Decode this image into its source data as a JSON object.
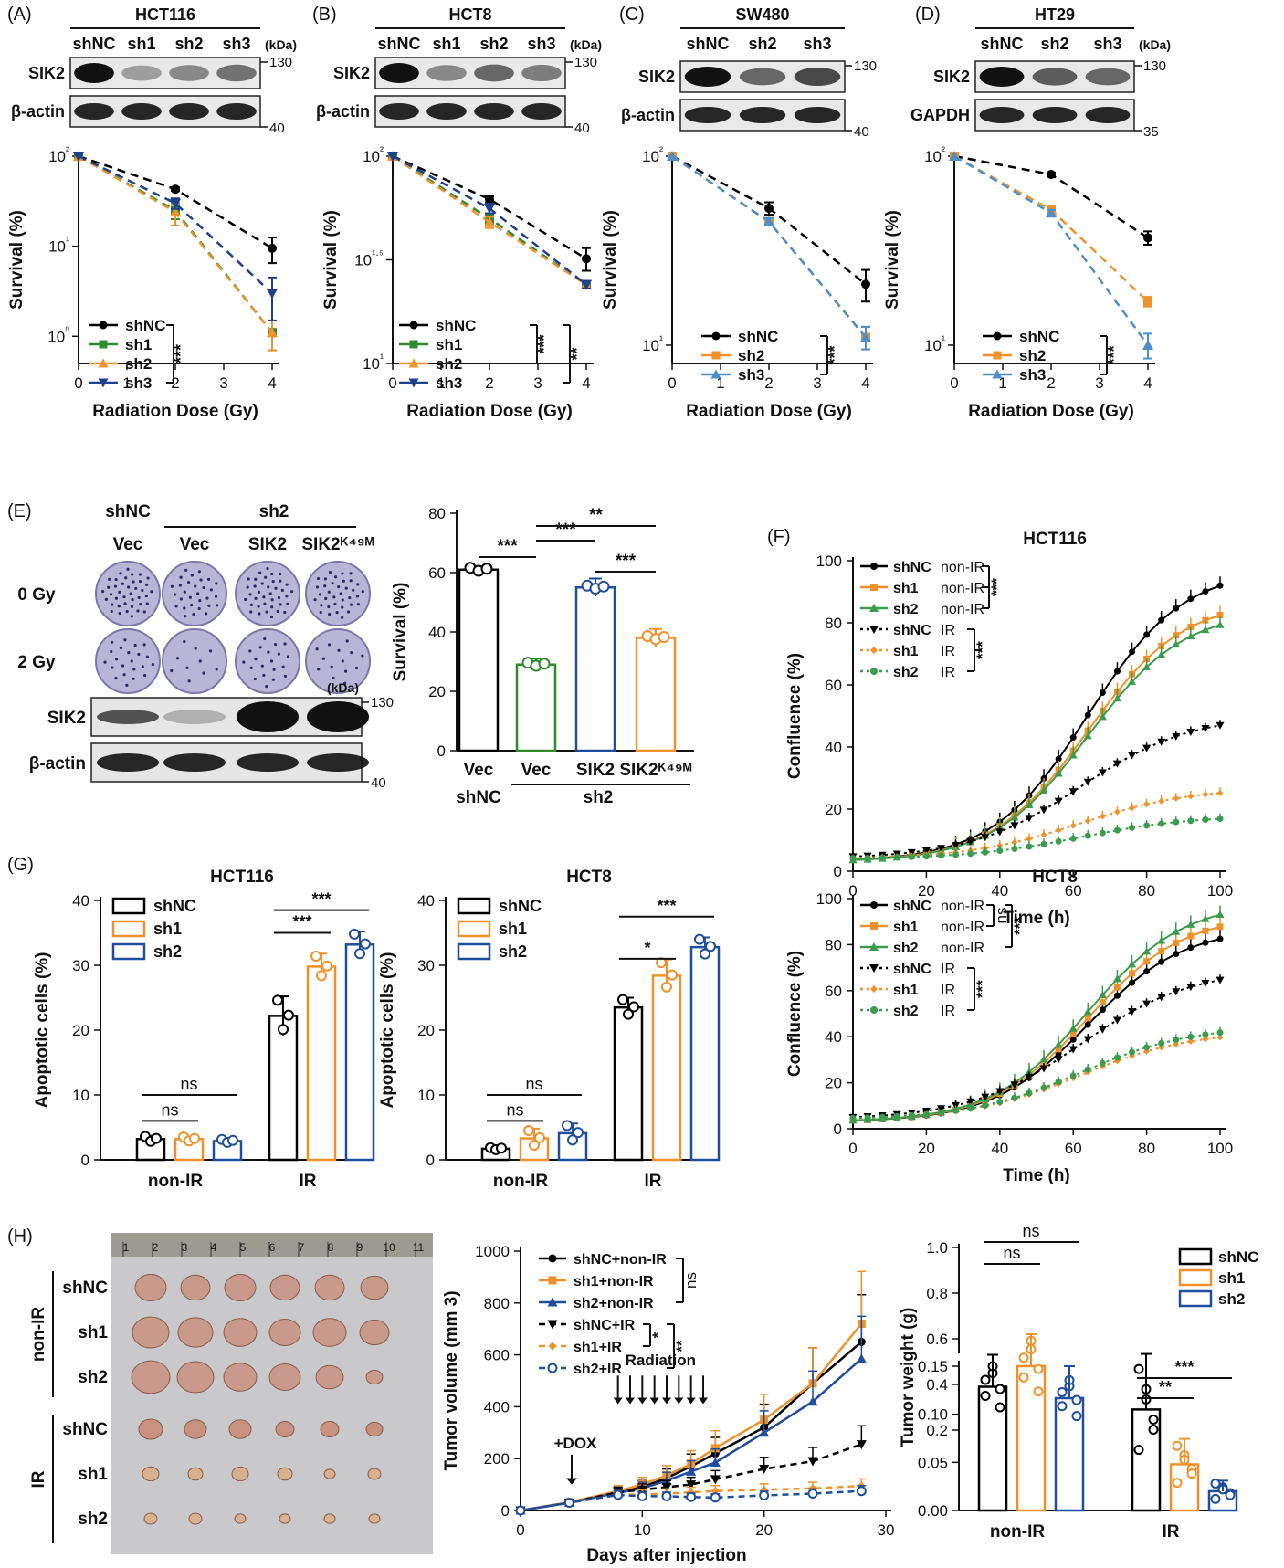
{
  "panels": {
    "A": {
      "label": "(A)",
      "cell": "HCT116",
      "lanes": [
        "shNC",
        "sh1",
        "sh2",
        "sh3"
      ],
      "kda": "(kDa)",
      "blots": [
        "SIK2",
        "β-actin"
      ],
      "markers": [
        "130",
        "40"
      ]
    },
    "B": {
      "label": "(B)",
      "cell": "HCT8",
      "lanes": [
        "shNC",
        "sh1",
        "sh2",
        "sh3"
      ],
      "kda": "(kDa)",
      "blots": [
        "SIK2",
        "β-actin"
      ],
      "markers": [
        "130",
        "40"
      ]
    },
    "C": {
      "label": "(C)",
      "cell": "SW480",
      "lanes": [
        "shNC",
        "sh2",
        "sh3"
      ],
      "blots": [
        "SIK2",
        "β-actin"
      ],
      "markers": [
        "130",
        "40"
      ]
    },
    "D": {
      "label": "(D)",
      "cell": "HT29",
      "lanes": [
        "shNC",
        "sh2",
        "sh3"
      ],
      "kda": "(kDa)",
      "blots": [
        "SIK2",
        "GAPDH"
      ],
      "markers": [
        "130",
        "35"
      ]
    },
    "E": {
      "label": "(E)",
      "groups": [
        "shNC",
        "sh2"
      ],
      "lanes": [
        "Vec",
        "Vec",
        "SIK2",
        "SIK2ᴷ⁴⁹ᴹ"
      ],
      "doses": [
        "0 Gy",
        "2 Gy"
      ],
      "kda": "(kDa)",
      "blots": [
        "SIK2",
        "β-actin"
      ],
      "markers": [
        "130",
        "40"
      ]
    },
    "F": {
      "label": "(F)"
    },
    "G": {
      "label": "(G)"
    },
    "H": {
      "label": "(H)",
      "rows": [
        "shNC",
        "sh1",
        "sh2",
        "shNC",
        "sh1",
        "sh2"
      ],
      "groups": [
        "non-IR",
        "IR"
      ],
      "ruler": [
        "1",
        "2",
        "3",
        "4",
        "5",
        "6",
        "7",
        "8",
        "9",
        "10",
        "11"
      ]
    }
  },
  "chart_data": [
    {
      "id": "A",
      "type": "line",
      "title": "",
      "xlabel": "Radiation Dose (Gy)",
      "ylabel": "Survival (%)",
      "yscale": "log",
      "ylim": [
        0.5,
        100
      ],
      "xlim": [
        0,
        4
      ],
      "yticks": [
        "10²",
        "10¹",
        "10⁰"
      ],
      "xticks": [
        "0",
        "1",
        "2",
        "3",
        "4"
      ],
      "legend_position": "bottom-left",
      "sig": [
        "***"
      ],
      "series": [
        {
          "name": "shNC",
          "color": "#000000",
          "marker": "circle",
          "x": [
            0,
            2,
            4
          ],
          "y": [
            100,
            43,
            9.5
          ],
          "err": [
            0,
            2,
            3
          ]
        },
        {
          "name": "sh1",
          "color": "#2e8b2e",
          "marker": "square",
          "x": [
            0,
            2,
            4
          ],
          "y": [
            100,
            25,
            1.1
          ],
          "err": [
            0,
            5,
            0.4
          ]
        },
        {
          "name": "sh2",
          "color": "#f0922b",
          "marker": "triangle",
          "x": [
            0,
            2,
            4
          ],
          "y": [
            100,
            24,
            1.1
          ],
          "err": [
            0,
            7,
            0.4
          ]
        },
        {
          "name": "sh3",
          "color": "#1f3f8f",
          "marker": "triangle-down",
          "x": [
            0,
            2,
            4
          ],
          "y": [
            100,
            30,
            3
          ],
          "err": [
            0,
            4,
            1.5
          ]
        }
      ]
    },
    {
      "id": "B",
      "type": "line",
      "title": "",
      "xlabel": "Radiation Dose (Gy)",
      "ylabel": "Survival (%)",
      "yscale": "log",
      "ylim": [
        10,
        100
      ],
      "xlim": [
        0,
        4
      ],
      "yticks": [
        "10²",
        "10¹·⁵",
        "10¹"
      ],
      "xticks": [
        "0",
        "1",
        "2",
        "3",
        "4"
      ],
      "legend_position": "bottom-left",
      "sig": [
        "***",
        "**"
      ],
      "series": [
        {
          "name": "shNC",
          "color": "#000000",
          "marker": "circle",
          "x": [
            0,
            2,
            4
          ],
          "y": [
            100,
            62,
            32
          ],
          "err": [
            0,
            2,
            4
          ]
        },
        {
          "name": "sh1",
          "color": "#2e8b2e",
          "marker": "square",
          "x": [
            0,
            2,
            4
          ],
          "y": [
            100,
            50,
            24
          ],
          "err": [
            0,
            3,
            1
          ]
        },
        {
          "name": "sh2",
          "color": "#f0922b",
          "marker": "triangle",
          "x": [
            0,
            2,
            4
          ],
          "y": [
            100,
            48,
            24
          ],
          "err": [
            0,
            3,
            1
          ]
        },
        {
          "name": "sh3",
          "color": "#1f3f8f",
          "marker": "triangle-down",
          "x": [
            0,
            2,
            4
          ],
          "y": [
            100,
            56,
            24
          ],
          "err": [
            0,
            3,
            1
          ]
        }
      ]
    },
    {
      "id": "C",
      "type": "line",
      "title": "",
      "xlabel": "Radiation Dose (Gy)",
      "ylabel": "Survival (%)",
      "yscale": "log",
      "ylim": [
        8,
        100
      ],
      "xlim": [
        0,
        4
      ],
      "yticks": [
        "10²",
        "10¹"
      ],
      "xticks": [
        "0",
        "1",
        "2",
        "3",
        "4"
      ],
      "legend_position": "bottom-left",
      "sig": [
        "***"
      ],
      "series": [
        {
          "name": "shNC",
          "color": "#000000",
          "marker": "circle",
          "x": [
            0,
            2,
            4
          ],
          "y": [
            100,
            53,
            21
          ],
          "err": [
            0,
            4,
            4
          ]
        },
        {
          "name": "sh2",
          "color": "#f0922b",
          "marker": "square",
          "x": [
            0,
            2,
            4
          ],
          "y": [
            100,
            45,
            11
          ],
          "err": [
            0,
            2,
            1.5
          ]
        },
        {
          "name": "sh3",
          "color": "#4d8fcc",
          "marker": "triangle",
          "x": [
            0,
            2,
            4
          ],
          "y": [
            100,
            45,
            11
          ],
          "err": [
            0,
            2,
            1.5
          ]
        }
      ]
    },
    {
      "id": "D",
      "type": "line",
      "title": "",
      "xlabel": "Radiation Dose (Gy)",
      "ylabel": "Survival (%)",
      "yscale": "log",
      "ylim": [
        8,
        100
      ],
      "xlim": [
        0,
        4
      ],
      "yticks": [
        "10²",
        "10¹"
      ],
      "xticks": [
        "0",
        "1",
        "2",
        "3",
        "4"
      ],
      "legend_position": "bottom-left",
      "sig": [
        "***"
      ],
      "series": [
        {
          "name": "shNC",
          "color": "#000000",
          "marker": "circle",
          "x": [
            0,
            2,
            4
          ],
          "y": [
            100,
            80,
            37
          ],
          "err": [
            0,
            2,
            3
          ]
        },
        {
          "name": "sh2",
          "color": "#f0922b",
          "marker": "square",
          "x": [
            0,
            2,
            4
          ],
          "y": [
            100,
            52,
            17
          ],
          "err": [
            0,
            2,
            1
          ]
        },
        {
          "name": "sh3",
          "color": "#4d8fcc",
          "marker": "triangle",
          "x": [
            0,
            2,
            4
          ],
          "y": [
            100,
            50,
            10
          ],
          "err": [
            0,
            2,
            1.5
          ]
        }
      ]
    },
    {
      "id": "E",
      "type": "bar",
      "title": "",
      "ylabel": "Survival (%)",
      "ylim": [
        0,
        80
      ],
      "yticks": [
        "0",
        "20",
        "40",
        "60",
        "80"
      ],
      "categories": [
        "Vec",
        "Vec",
        "SIK2",
        "SIK2ᴷ⁴⁹ᴹ"
      ],
      "groups": [
        "shNC",
        "sh2"
      ],
      "values": [
        61,
        29,
        55,
        38
      ],
      "err": [
        1,
        2,
        3,
        3
      ],
      "colors": [
        "#000000",
        "#2e8b2e",
        "#1f4e9c",
        "#f0922b"
      ],
      "sig": [
        "***",
        "***",
        "**",
        "***"
      ]
    },
    {
      "id": "F1",
      "type": "line",
      "title": "HCT116",
      "xlabel": "Time (h)",
      "ylabel": "Confluence (%)",
      "xlim": [
        0,
        100
      ],
      "ylim": [
        0,
        100
      ],
      "xticks": [
        "0",
        "20",
        "40",
        "60",
        "80",
        "100"
      ],
      "yticks": [
        "0",
        "20",
        "40",
        "60",
        "80",
        "100"
      ],
      "legend_position": "top-left",
      "sig": [
        "***",
        "***"
      ],
      "series": [
        {
          "name": "shNC",
          "cond": "non-IR",
          "color": "#000000",
          "marker": "circle",
          "final": 88
        },
        {
          "name": "sh1",
          "cond": "non-IR",
          "color": "#f0922b",
          "marker": "square",
          "final": 79
        },
        {
          "name": "sh2",
          "cond": "non-IR",
          "color": "#3b9b4e",
          "marker": "triangle",
          "final": 76
        },
        {
          "name": "shNC",
          "cond": "IR",
          "color": "#000000",
          "marker": "triangle-down",
          "final": 45
        },
        {
          "name": "sh1",
          "cond": "IR",
          "color": "#f0922b",
          "marker": "diamond",
          "final": 24
        },
        {
          "name": "sh2",
          "cond": "IR",
          "color": "#3b9b4e",
          "marker": "circle",
          "final": 16
        }
      ]
    },
    {
      "id": "F2",
      "type": "line",
      "title": "HCT8",
      "xlabel": "Time (h)",
      "ylabel": "Confluence (%)",
      "xlim": [
        0,
        100
      ],
      "ylim": [
        0,
        100
      ],
      "xticks": [
        "0",
        "20",
        "40",
        "60",
        "80",
        "100"
      ],
      "yticks": [
        "0",
        "20",
        "40",
        "60",
        "80",
        "100"
      ],
      "legend_position": "top-left",
      "sig": [
        "ns",
        "***",
        "***"
      ],
      "series": [
        {
          "name": "shNC",
          "cond": "non-IR",
          "color": "#000000",
          "marker": "circle",
          "final": 79
        },
        {
          "name": "sh1",
          "cond": "non-IR",
          "color": "#f0922b",
          "marker": "square",
          "final": 84
        },
        {
          "name": "sh2",
          "cond": "non-IR",
          "color": "#3b9b4e",
          "marker": "triangle",
          "final": 89
        },
        {
          "name": "shNC",
          "cond": "IR",
          "color": "#000000",
          "marker": "triangle-down",
          "final": 62
        },
        {
          "name": "sh1",
          "cond": "IR",
          "color": "#f0922b",
          "marker": "diamond",
          "final": 38
        },
        {
          "name": "sh2",
          "cond": "IR",
          "color": "#3b9b4e",
          "marker": "circle",
          "final": 40
        }
      ]
    },
    {
      "id": "G1",
      "type": "bar",
      "title": "HCT116",
      "ylabel": "Apoptotic cells (%)",
      "ylim": [
        0,
        40
      ],
      "yticks": [
        "0",
        "10",
        "20",
        "30",
        "40"
      ],
      "categories": [
        "non-IR",
        "IR"
      ],
      "legend_position": "top-left",
      "series": [
        {
          "name": "shNC",
          "color": "#000000",
          "values": [
            3.2,
            22.2
          ],
          "err": [
            0.5,
            3
          ]
        },
        {
          "name": "sh1",
          "color": "#f0922b",
          "values": [
            3.2,
            29.8
          ],
          "err": [
            0.4,
            2
          ]
        },
        {
          "name": "sh2",
          "color": "#1f4e9c",
          "values": [
            2.9,
            33.2
          ],
          "err": [
            0.3,
            2
          ]
        }
      ],
      "sig": [
        "ns",
        "ns",
        "***",
        "***"
      ]
    },
    {
      "id": "G2",
      "type": "bar",
      "title": "HCT8",
      "ylabel": "Apoptotic cells (%)",
      "ylim": [
        0,
        40
      ],
      "yticks": [
        "0",
        "10",
        "20",
        "30",
        "40"
      ],
      "categories": [
        "non-IR",
        "IR"
      ],
      "legend_position": "top-left",
      "series": [
        {
          "name": "shNC",
          "color": "#000000",
          "values": [
            1.7,
            23.5
          ],
          "err": [
            0.2,
            1.5
          ]
        },
        {
          "name": "sh1",
          "color": "#f0922b",
          "values": [
            3.3,
            28.4
          ],
          "err": [
            1.5,
            2.5
          ]
        },
        {
          "name": "sh2",
          "color": "#1f4e9c",
          "values": [
            4.1,
            32.8
          ],
          "err": [
            1.5,
            1.5
          ]
        }
      ],
      "sig": [
        "ns",
        "ns",
        "*",
        "***"
      ]
    },
    {
      "id": "H1",
      "type": "line",
      "title": "",
      "xlabel": "Days after injection",
      "ylabel": "Tumor volume (mm 3)",
      "xlim": [
        0,
        30
      ],
      "ylim": [
        0,
        1000
      ],
      "xticks": [
        "0",
        "10",
        "20",
        "30"
      ],
      "yticks": [
        "0",
        "200",
        "400",
        "600",
        "800",
        "1000"
      ],
      "annotations": [
        "+DOX",
        "Radiation"
      ],
      "sig": [
        "ns",
        "*",
        "**"
      ],
      "x": [
        0,
        4,
        8,
        10,
        12,
        14,
        16,
        20,
        24,
        28
      ],
      "series": [
        {
          "name": "shNC+non-IR",
          "color": "#000000",
          "marker": "circle",
          "dash": "",
          "values": [
            0,
            30,
            70,
            90,
            125,
            170,
            220,
            320,
            490,
            650
          ]
        },
        {
          "name": "sh1+non-IR",
          "color": "#f0922b",
          "marker": "square",
          "dash": "",
          "values": [
            0,
            32,
            75,
            100,
            135,
            180,
            240,
            350,
            490,
            720
          ]
        },
        {
          "name": "sh2+non-IR",
          "color": "#1f4e9c",
          "marker": "triangle",
          "dash": "",
          "values": [
            0,
            30,
            68,
            85,
            115,
            150,
            185,
            300,
            420,
            585
          ]
        },
        {
          "name": "shNC+IR",
          "color": "#000000",
          "marker": "triangle-down",
          "dash": "7,5",
          "values": [
            0,
            30,
            70,
            80,
            90,
            100,
            120,
            160,
            190,
            255
          ]
        },
        {
          "name": "sh1+IR",
          "color": "#f0922b",
          "marker": "diamond",
          "dash": "7,5",
          "values": [
            0,
            30,
            60,
            62,
            65,
            70,
            75,
            80,
            85,
            95
          ]
        },
        {
          "name": "sh2+IR",
          "color": "#1f4e9c",
          "marker": "circle-open",
          "dash": "7,5",
          "values": [
            0,
            30,
            60,
            55,
            55,
            52,
            50,
            58,
            65,
            75
          ]
        }
      ]
    },
    {
      "id": "H2",
      "type": "bar",
      "title": "",
      "ylabel": "Tumor weight (g)",
      "categories": [
        "non-IR",
        "IR"
      ],
      "legend_position": "top-right",
      "yticks_upper": [
        "0.2",
        "0.4",
        "0.6",
        "0.8",
        "1.0"
      ],
      "yticks_lower": [
        "0.00",
        "0.05",
        "0.10",
        "0.15"
      ],
      "axis_break": [
        0.16,
        0.2
      ],
      "series": [
        {
          "name": "shNC",
          "color": "#000000",
          "values": [
            0.39,
            0.105
          ]
        },
        {
          "name": "sh1",
          "color": "#f0922b",
          "values": [
            0.48,
            0.048
          ]
        },
        {
          "name": "sh2",
          "color": "#1f4e9c",
          "values": [
            0.34,
            0.02
          ]
        }
      ],
      "sig": [
        "ns",
        "ns",
        "**",
        "***"
      ]
    }
  ]
}
